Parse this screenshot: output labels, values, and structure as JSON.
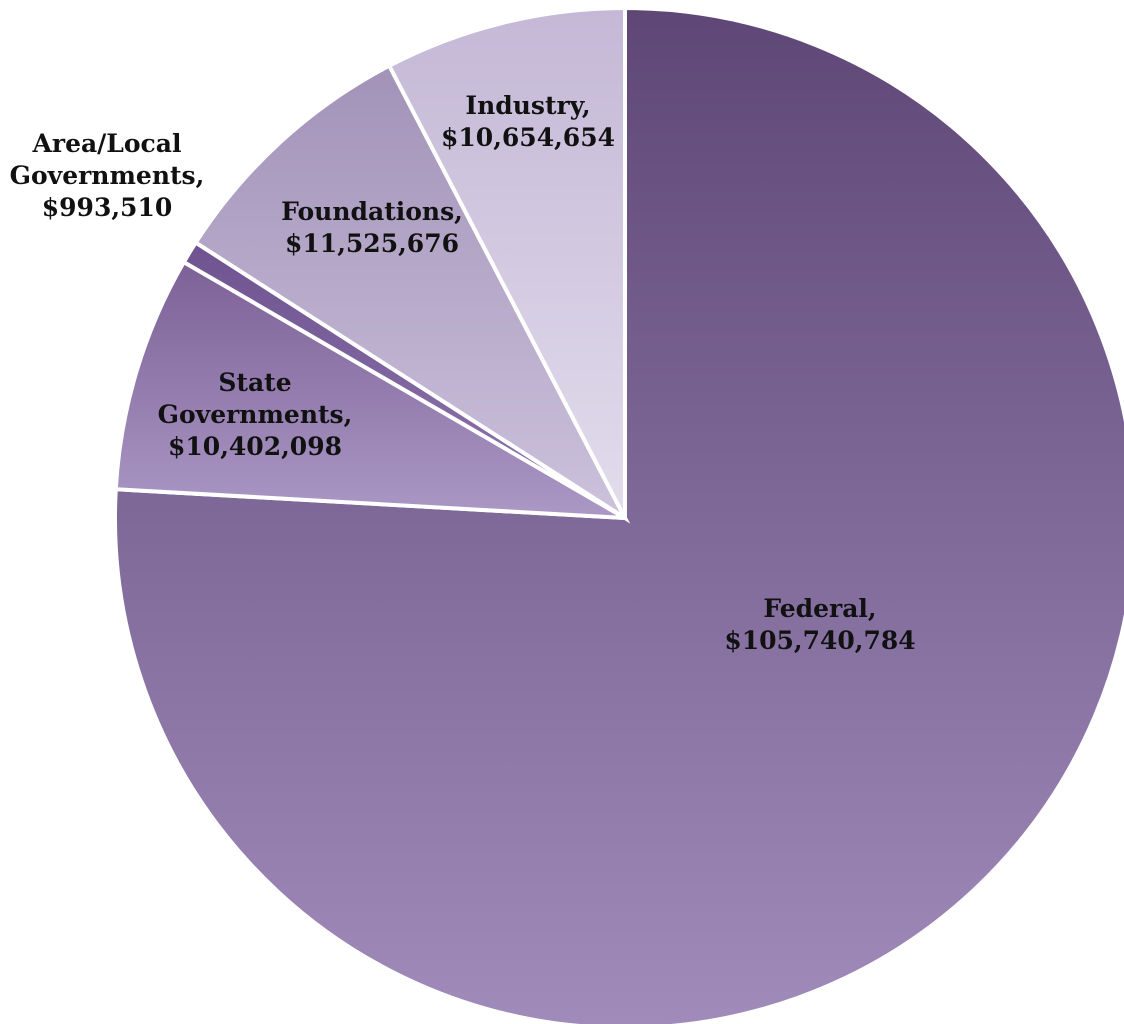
{
  "chart_data": {
    "type": "pie",
    "title": "",
    "start_angle_deg": 0,
    "direction": "clockwise",
    "slices": [
      {
        "name": "Federal",
        "label_lines": [
          "Federal,",
          "$105,740,784"
        ],
        "value": 105740784,
        "gradient": [
          "#5e4776",
          "#a08bbb"
        ]
      },
      {
        "name": "State Governments",
        "label_lines": [
          "State",
          "Governments,",
          "$10,402,098"
        ],
        "value": 10402098,
        "gradient": [
          "#7c6196",
          "#ab98c5"
        ]
      },
      {
        "name": "Area/Local Governments",
        "label_lines": [
          "Area/Local",
          "Governments,",
          "$993,510"
        ],
        "value": 993510,
        "gradient": [
          "#6e5390",
          "#8f77ad"
        ]
      },
      {
        "name": "Foundations",
        "label_lines": [
          "Foundations,",
          "$11,525,676"
        ],
        "value": 11525676,
        "gradient": [
          "#a292b8",
          "#ccc2dc"
        ]
      },
      {
        "name": "Industry",
        "label_lines": [
          "Industry,",
          "$10,654,654"
        ],
        "value": 10654654,
        "gradient": [
          "#c4b8d6",
          "#e2dcec"
        ]
      }
    ]
  }
}
